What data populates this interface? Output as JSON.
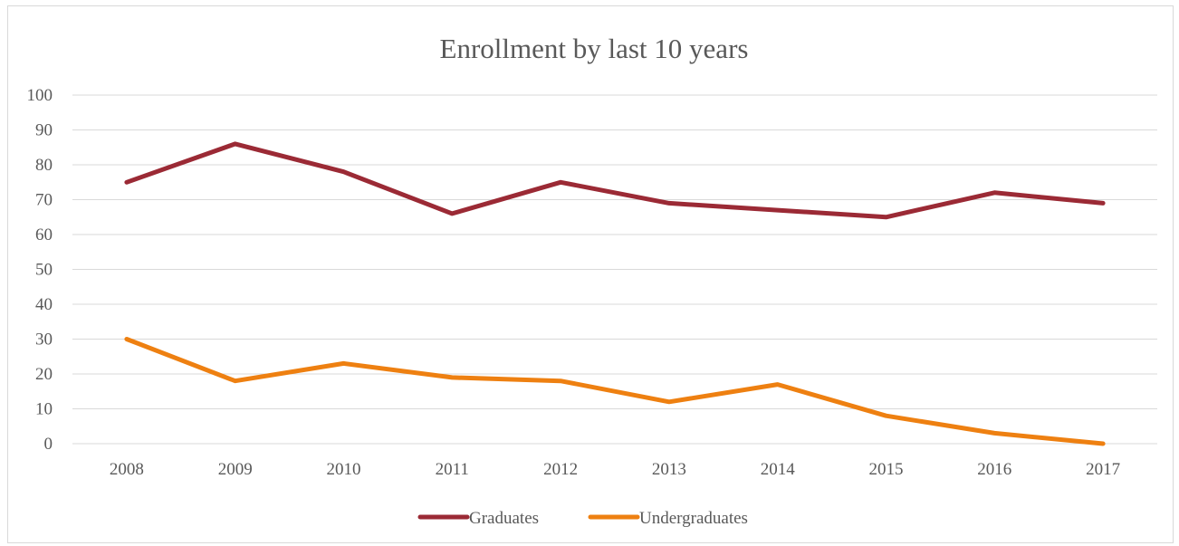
{
  "chart_data": {
    "type": "line",
    "title": "Enrollment by last 10 years",
    "xlabel": "",
    "ylabel": "",
    "categories": [
      "2008",
      "2009",
      "2010",
      "2011",
      "2012",
      "2013",
      "2014",
      "2015",
      "2016",
      "2017"
    ],
    "series": [
      {
        "name": "Graduates",
        "color": "#9b2a35",
        "values": [
          75,
          86,
          78,
          66,
          75,
          69,
          67,
          65,
          72,
          69
        ]
      },
      {
        "name": "Undergraduates",
        "color": "#ee8011",
        "values": [
          30,
          18,
          23,
          19,
          18,
          12,
          17,
          8,
          3,
          0
        ]
      }
    ],
    "ylim": [
      0,
      100
    ],
    "yticks": [
      0,
      10,
      20,
      30,
      40,
      50,
      60,
      70,
      80,
      90,
      100
    ],
    "grid": true,
    "legend_position": "bottom"
  }
}
